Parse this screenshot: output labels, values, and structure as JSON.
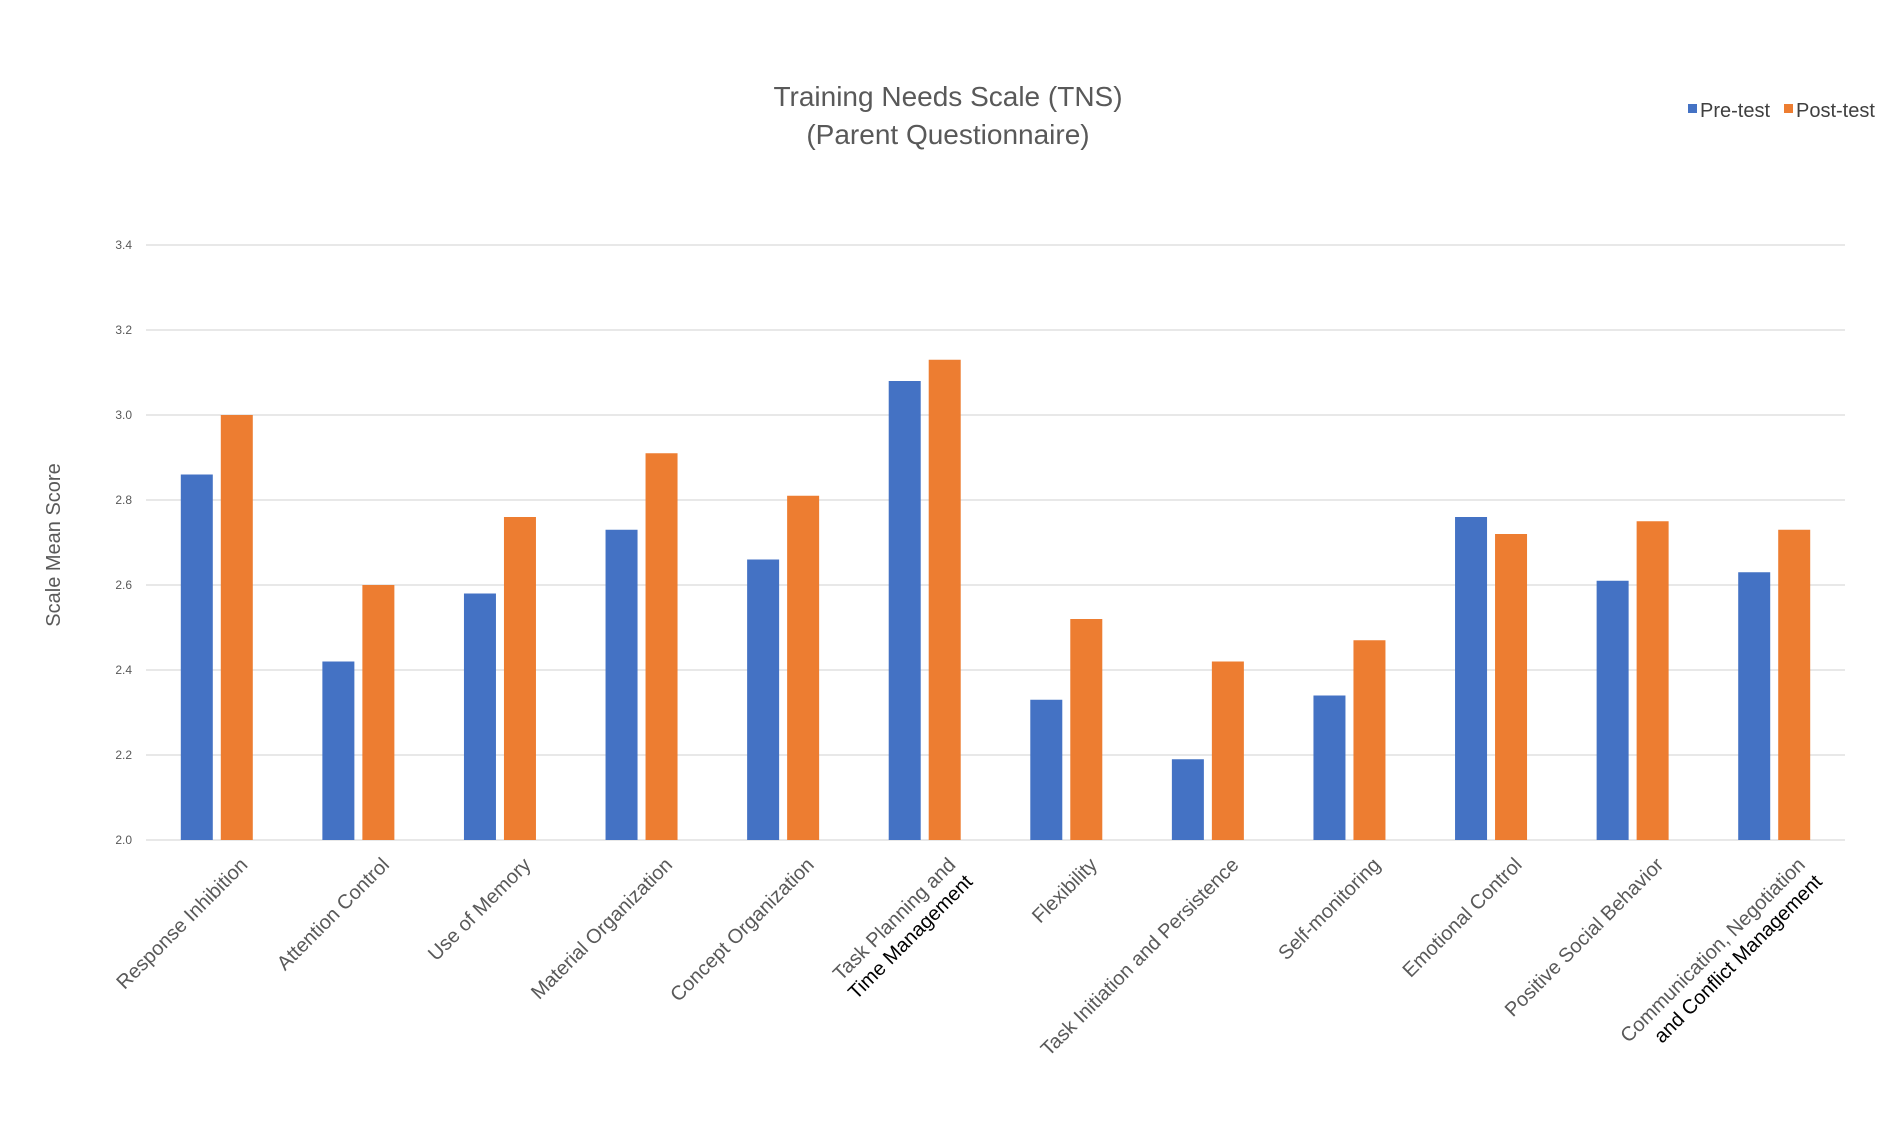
{
  "chart_data": {
    "type": "bar",
    "title": [
      "Training Needs Scale (TNS)",
      "(Parent Questionnaire)"
    ],
    "xlabel": "",
    "ylabel": "Scale Mean Score",
    "ylim": [
      2.0,
      3.4
    ],
    "yticks": [
      "2.0",
      "2.2",
      "2.4",
      "2.6",
      "2.8",
      "3.0",
      "3.2",
      "3.4"
    ],
    "grid": true,
    "legend_position": "top-right",
    "categories": [
      [
        "Response Inhibition"
      ],
      [
        "Attention Control"
      ],
      [
        "Use of Memory"
      ],
      [
        "Material Organization"
      ],
      [
        "Concept Organization"
      ],
      [
        "Task Planning and",
        "Time Management"
      ],
      [
        "Flexibility"
      ],
      [
        "Task Initiation and Persistence"
      ],
      [
        "Self-monitoring"
      ],
      [
        "Emotional Control"
      ],
      [
        "Positive Social Behavior"
      ],
      [
        "Communication, Negotiation",
        "and Conflict Management"
      ]
    ],
    "series": [
      {
        "name": "Pre-test",
        "color": "#4472c4",
        "values": [
          2.86,
          2.42,
          2.58,
          2.73,
          2.66,
          3.08,
          2.33,
          2.19,
          2.34,
          2.76,
          2.61,
          2.63
        ]
      },
      {
        "name": "Post-test",
        "color": "#ed7d31",
        "values": [
          3.0,
          2.6,
          2.76,
          2.91,
          2.81,
          3.13,
          2.52,
          2.42,
          2.47,
          2.72,
          2.75,
          2.73
        ]
      }
    ]
  }
}
